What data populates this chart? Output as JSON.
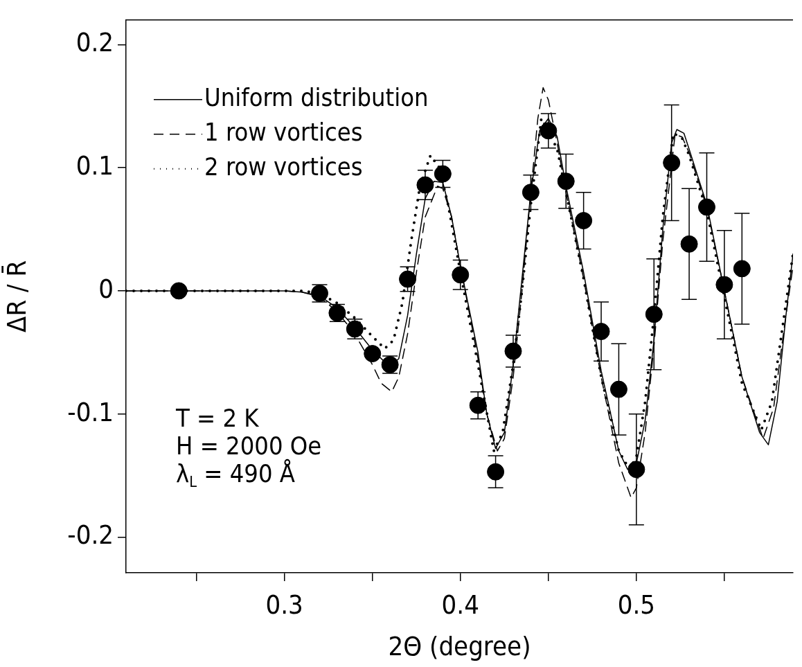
{
  "chart_data": {
    "type": "scatter",
    "xlabel": "2Θ (degree)",
    "ylabel": "ΔR / R̄",
    "xlim": [
      0.21,
      0.589
    ],
    "ylim": [
      -0.229,
      0.22
    ],
    "xticks": [
      {
        "value": 0.25,
        "label": null
      },
      0.3,
      {
        "value": 0.35,
        "label": null
      },
      0.4,
      {
        "value": 0.45,
        "label": null
      },
      0.5,
      {
        "value": 0.55,
        "label": null
      }
    ],
    "yticks": [
      -0.2,
      -0.1,
      0,
      0.1,
      0.2
    ],
    "grid": false,
    "legend": "top left",
    "annotations": [
      "T = 2 K",
      "H = 2000 Oe",
      "λ$_{L}$ = 490 Å"
    ],
    "series": [
      {
        "name": "Uniform distribution",
        "type": "line",
        "line_style": "solid",
        "color": "#000000",
        "x": [
          0.21,
          0.3,
          0.31,
          0.32,
          0.33,
          0.34,
          0.35,
          0.36,
          0.365,
          0.37,
          0.375,
          0.38,
          0.385,
          0.39,
          0.395,
          0.4,
          0.41,
          0.415,
          0.42,
          0.425,
          0.43,
          0.435,
          0.44,
          0.445,
          0.45,
          0.455,
          0.46,
          0.47,
          0.48,
          0.49,
          0.495,
          0.5,
          0.505,
          0.51,
          0.515,
          0.52,
          0.523,
          0.527,
          0.53,
          0.54,
          0.55,
          0.56,
          0.57,
          0.575,
          0.58,
          0.585,
          0.589
        ],
        "values": [
          0,
          0,
          -0.001,
          -0.004,
          -0.014,
          -0.03,
          -0.048,
          -0.062,
          -0.055,
          -0.02,
          0.03,
          0.075,
          0.089,
          0.088,
          0.06,
          0.02,
          -0.05,
          -0.1,
          -0.128,
          -0.115,
          -0.06,
          0.01,
          0.08,
          0.13,
          0.14,
          0.125,
          0.085,
          0.015,
          -0.065,
          -0.13,
          -0.145,
          -0.14,
          -0.105,
          -0.04,
          0.05,
          0.12,
          0.131,
          0.128,
          0.115,
          0.07,
          0,
          -0.07,
          -0.115,
          -0.125,
          -0.09,
          -0.02,
          0.03
        ]
      },
      {
        "name": "1 row vortices",
        "type": "line",
        "line_style": "dashed",
        "color": "#000000",
        "x": [
          0.21,
          0.3,
          0.31,
          0.32,
          0.33,
          0.34,
          0.35,
          0.355,
          0.361,
          0.365,
          0.37,
          0.375,
          0.38,
          0.387,
          0.39,
          0.395,
          0.4,
          0.41,
          0.415,
          0.421,
          0.425,
          0.43,
          0.435,
          0.44,
          0.444,
          0.447,
          0.45,
          0.455,
          0.46,
          0.47,
          0.48,
          0.49,
          0.497,
          0.5,
          0.505,
          0.51,
          0.515,
          0.522,
          0.526,
          0.53,
          0.54,
          0.55,
          0.56,
          0.572,
          0.578,
          0.584,
          0.589
        ],
        "values": [
          0,
          0,
          -0.001,
          -0.005,
          -0.017,
          -0.035,
          -0.06,
          -0.075,
          -0.082,
          -0.07,
          -0.035,
          0.015,
          0.06,
          0.085,
          0.083,
          0.06,
          0.02,
          -0.055,
          -0.1,
          -0.13,
          -0.12,
          -0.07,
          0.0,
          0.08,
          0.14,
          0.165,
          0.155,
          0.12,
          0.08,
          0.01,
          -0.07,
          -0.14,
          -0.168,
          -0.16,
          -0.115,
          -0.045,
          0.04,
          0.127,
          0.125,
          0.112,
          0.068,
          0,
          -0.07,
          -0.12,
          -0.095,
          -0.03,
          0.02
        ]
      },
      {
        "name": "2 row vortices",
        "type": "line",
        "line_style": "dotted",
        "color": "#000000",
        "x": [
          0.21,
          0.3,
          0.31,
          0.32,
          0.33,
          0.34,
          0.35,
          0.357,
          0.362,
          0.367,
          0.372,
          0.377,
          0.383,
          0.388,
          0.393,
          0.4,
          0.41,
          0.419,
          0.424,
          0.43,
          0.435,
          0.44,
          0.446,
          0.45,
          0.455,
          0.46,
          0.47,
          0.48,
          0.49,
          0.496,
          0.5,
          0.505,
          0.51,
          0.515,
          0.521,
          0.526,
          0.53,
          0.54,
          0.55,
          0.56,
          0.571,
          0.577,
          0.583,
          0.589
        ],
        "values": [
          0,
          0,
          0,
          -0.002,
          -0.01,
          -0.022,
          -0.037,
          -0.047,
          -0.04,
          -0.01,
          0.04,
          0.085,
          0.11,
          0.1,
          0.07,
          0.015,
          -0.06,
          -0.13,
          -0.115,
          -0.06,
          0.0,
          0.07,
          0.14,
          0.13,
          0.115,
          0.08,
          0.01,
          -0.07,
          -0.13,
          -0.145,
          -0.135,
          -0.09,
          -0.02,
          0.06,
          0.128,
          0.124,
          0.11,
          0.065,
          -0.005,
          -0.075,
          -0.113,
          -0.09,
          -0.03,
          0.03
        ]
      },
      {
        "marker": "circle",
        "color": "#000000",
        "x": [
          0.24,
          0.32,
          0.33,
          0.34,
          0.35,
          0.36,
          0.37,
          0.38,
          0.39,
          0.4,
          0.41,
          0.42,
          0.43,
          0.44,
          0.45,
          0.46,
          0.47,
          0.48,
          0.49,
          0.5,
          0.51,
          0.52,
          0.53,
          0.54,
          0.55,
          0.56
        ],
        "values": [
          0,
          -0.002,
          -0.018,
          -0.031,
          -0.051,
          -0.06,
          0.0095,
          0.086,
          0.095,
          0.013,
          -0.093,
          -0.147,
          -0.049,
          0.08,
          0.13,
          0.089,
          0.057,
          -0.033,
          -0.08,
          -0.145,
          -0.019,
          0.104,
          0.038,
          0.068,
          0.005,
          0.018
        ],
        "errors": [
          null,
          0.007,
          0.007,
          0.008,
          null,
          0.007,
          0.01,
          0.012,
          0.011,
          0.012,
          0.011,
          0.013,
          0.013,
          0.014,
          0.014,
          0.022,
          0.023,
          0.024,
          0.037,
          0.045,
          0.045,
          0.047,
          0.045,
          0.044,
          0.044,
          0.045
        ]
      }
    ]
  }
}
